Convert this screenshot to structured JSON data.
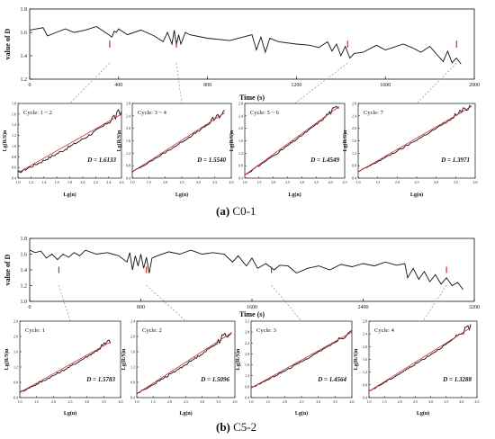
{
  "panels": [
    {
      "id": "a",
      "caption_letter": "(a)",
      "caption_text": "C0-1",
      "main": {
        "ylabel": "value of D",
        "xlabel": "Time (s)",
        "xlim": [
          0,
          2000
        ],
        "ylim": [
          1.2,
          1.8
        ],
        "xticks": [
          "0",
          "400",
          "800",
          "1200",
          "1600",
          "2000"
        ],
        "yticks": [
          "1.2",
          "1.4",
          "1.6",
          "1.8"
        ],
        "x": [
          0,
          60,
          80,
          120,
          160,
          200,
          250,
          300,
          340,
          370,
          380,
          390,
          400,
          440,
          500,
          560,
          600,
          620,
          640,
          650,
          660,
          670,
          680,
          700,
          720,
          800,
          900,
          960,
          1000,
          1020,
          1040,
          1060,
          1080,
          1120,
          1200,
          1260,
          1300,
          1340,
          1360,
          1380,
          1400,
          1420,
          1440,
          1460,
          1500,
          1560,
          1600,
          1680,
          1720,
          1760,
          1800,
          1860,
          1880,
          1900,
          1920,
          1940
        ],
        "y": [
          1.62,
          1.64,
          1.57,
          1.6,
          1.63,
          1.6,
          1.62,
          1.65,
          1.6,
          1.56,
          1.61,
          1.6,
          1.63,
          1.58,
          1.62,
          1.57,
          1.52,
          1.6,
          1.5,
          1.62,
          1.49,
          1.58,
          1.5,
          1.6,
          1.58,
          1.55,
          1.53,
          1.56,
          1.58,
          1.45,
          1.56,
          1.43,
          1.55,
          1.52,
          1.5,
          1.49,
          1.47,
          1.52,
          1.44,
          1.5,
          1.4,
          1.48,
          1.38,
          1.42,
          1.43,
          1.49,
          1.45,
          1.5,
          1.47,
          1.43,
          1.48,
          1.35,
          1.44,
          1.34,
          1.38,
          1.33
        ]
      },
      "subplots": [
        {
          "cycle": "Cycle: 1 ~ 2",
          "D": "D = 1.6133",
          "xlabel": "Lg(n)",
          "ylabel": "Lg(R/S)n",
          "xticks": [
            "1.0",
            "1.2",
            "1.4",
            "1.6",
            "1.8",
            "2.0",
            "2.2",
            "2.4",
            "2.6"
          ],
          "yticks": [
            "0.4",
            "0.6",
            "0.8",
            "1.0",
            "1.2",
            "1.4",
            "1.6",
            "1.8"
          ],
          "xlim": [
            1.0,
            2.6
          ],
          "ylim": [
            0.4,
            1.8
          ],
          "fit": [
            [
              1.0,
              0.5
            ],
            [
              2.6,
              1.6
            ]
          ]
        },
        {
          "cycle": "Cycle: 3 ~ 4",
          "D": "D = 1.5540",
          "xlabel": "Lg(n)",
          "ylabel": "Lg(R/S)n",
          "xticks": [
            "1.0",
            "1.5",
            "2.0",
            "2.5",
            "3.0",
            "3.5",
            "4.0"
          ],
          "yticks": [
            "0.4",
            "0.8",
            "1.2",
            "1.6",
            "2.0",
            "2.4",
            "2.8"
          ],
          "xlim": [
            1.0,
            4.0
          ],
          "ylim": [
            0.4,
            2.8
          ],
          "fit": [
            [
              1.0,
              0.6
            ],
            [
              3.8,
              2.5
            ]
          ]
        },
        {
          "cycle": "Cycle: 5 ~ 6",
          "D": "D = 1.4549",
          "xlabel": "Lg(n)",
          "ylabel": "Lg(R/S)n",
          "xticks": [
            "1.0",
            "1.5",
            "2.0",
            "2.5",
            "3.0",
            "3.5",
            "4.0",
            "4.5"
          ],
          "yticks": [
            "0.4",
            "0.8",
            "1.2",
            "1.6",
            "2.0",
            "2.4",
            "2.8"
          ],
          "xlim": [
            1.0,
            4.5
          ],
          "ylim": [
            0.4,
            2.8
          ],
          "fit": [
            [
              1.0,
              0.5
            ],
            [
              4.3,
              2.7
            ]
          ]
        },
        {
          "cycle": "Cycle: 7",
          "D": "D = 1.3971",
          "xlabel": "Lg(n)",
          "ylabel": "Lg(R/S)n",
          "xticks": [
            "1.0",
            "1.5",
            "2.0",
            "2.5",
            "3.0",
            "3.5",
            "4.0"
          ],
          "yticks": [
            "0.4",
            "0.8",
            "1.2",
            "1.6",
            "2.0",
            "2.4",
            "2.8"
          ],
          "xlim": [
            1.0,
            4.0
          ],
          "ylim": [
            0.4,
            2.8
          ],
          "fit": [
            [
              1.0,
              0.6
            ],
            [
              3.9,
              2.7
            ]
          ]
        }
      ]
    },
    {
      "id": "b",
      "caption_letter": "(b)",
      "caption_text": "C5-2",
      "main": {
        "ylabel": "value of D",
        "xlabel": "Time (s)",
        "xlim": [
          0,
          3200
        ],
        "ylim": [
          1.0,
          1.8
        ],
        "xticks": [
          "0",
          "800",
          "1600",
          "2400",
          "3200"
        ],
        "yticks": [
          "1.0",
          "1.2",
          "1.4",
          "1.6",
          "1.8"
        ],
        "x": [
          0,
          40,
          80,
          120,
          160,
          200,
          240,
          280,
          320,
          360,
          400,
          480,
          560,
          640,
          700,
          720,
          740,
          760,
          780,
          800,
          820,
          840,
          860,
          880,
          920,
          1000,
          1080,
          1160,
          1240,
          1320,
          1400,
          1460,
          1500,
          1560,
          1600,
          1640,
          1700,
          1760,
          1800,
          1860,
          1920,
          2000,
          2080,
          2160,
          2240,
          2320,
          2400,
          2480,
          2560,
          2640,
          2700,
          2720,
          2760,
          2800,
          2840,
          2880,
          2920,
          2960,
          3000,
          3040,
          3080,
          3120
        ],
        "y": [
          1.65,
          1.62,
          1.64,
          1.55,
          1.6,
          1.53,
          1.6,
          1.56,
          1.62,
          1.58,
          1.65,
          1.6,
          1.62,
          1.58,
          1.5,
          1.62,
          1.4,
          1.58,
          1.45,
          1.6,
          1.42,
          1.56,
          1.36,
          1.55,
          1.58,
          1.63,
          1.6,
          1.65,
          1.6,
          1.62,
          1.6,
          1.5,
          1.58,
          1.45,
          1.55,
          1.42,
          1.48,
          1.4,
          1.46,
          1.45,
          1.36,
          1.42,
          1.45,
          1.4,
          1.47,
          1.44,
          1.48,
          1.45,
          1.5,
          1.46,
          1.48,
          1.3,
          1.42,
          1.28,
          1.38,
          1.25,
          1.34,
          1.22,
          1.3,
          1.2,
          1.24,
          1.15
        ]
      },
      "subplots": [
        {
          "cycle": "Cycle: 1",
          "D": "D = 1.5783",
          "xlabel": "Lg(n)",
          "ylabel": "Lg(R/S)n",
          "xticks": [
            "1.0",
            "1.5",
            "2.0",
            "2.5",
            "3.0",
            "3.5",
            "4.0"
          ],
          "yticks": [
            "0.4",
            "0.8",
            "1.2",
            "1.6",
            "2.0",
            "2.4"
          ],
          "xlim": [
            1.0,
            4.0
          ],
          "ylim": [
            0.4,
            2.6
          ],
          "fit": [
            [
              1.0,
              0.55
            ],
            [
              3.7,
              2.0
            ]
          ]
        },
        {
          "cycle": "Cycle: 2",
          "D": "D = 1.5096",
          "xlabel": "Lg(n)",
          "ylabel": "Lg(R/S)n",
          "xticks": [
            "1.0",
            "1.5",
            "2.0",
            "2.5",
            "3.0",
            "3.5",
            "4.0"
          ],
          "yticks": [
            "0.4",
            "0.8",
            "1.2",
            "1.6",
            "2.0",
            "2.4"
          ],
          "xlim": [
            1.0,
            4.0
          ],
          "ylim": [
            0.4,
            2.4
          ],
          "fit": [
            [
              1.0,
              0.5
            ],
            [
              3.9,
              2.1
            ]
          ]
        },
        {
          "cycle": "Cycle: 3",
          "D": "D = 1.4564",
          "xlabel": "Lg(n)",
          "ylabel": "Lg(R/S)n",
          "xticks": [
            "1.0",
            "1.5",
            "2.0",
            "2.5",
            "3.0",
            "3.5",
            "4.0"
          ],
          "yticks": [
            "0.4",
            "0.8",
            "1.2",
            "1.6",
            "2.0",
            "2.4",
            "2.8",
            "3.2"
          ],
          "xlim": [
            1.0,
            4.0
          ],
          "ylim": [
            0.4,
            3.2
          ],
          "fit": [
            [
              1.0,
              0.75
            ],
            [
              4.0,
              2.8
            ]
          ]
        },
        {
          "cycle": "Cycle: 4",
          "D": "D = 1.3288",
          "xlabel": "Lg(n)",
          "ylabel": "Lg(R/S)n",
          "xticks": [
            "1.0",
            "1.5",
            "2.0",
            "2.5",
            "3.0",
            "3.5",
            "4.0",
            "4.5"
          ],
          "yticks": [
            "0.4",
            "0.8",
            "1.2",
            "1.6",
            "2.0",
            "2.4",
            "2.8"
          ],
          "xlim": [
            1.0,
            4.5
          ],
          "ylim": [
            0.4,
            2.8
          ],
          "fit": [
            [
              1.0,
              0.6
            ],
            [
              4.3,
              2.6
            ]
          ]
        }
      ]
    }
  ],
  "chart_data": [
    {
      "type": "line",
      "title": "",
      "xlabel": "Time (s)",
      "ylabel": "value of D",
      "xlim": [
        0,
        2000
      ],
      "ylim": [
        1.2,
        1.8
      ],
      "grid": false
    },
    {
      "type": "line",
      "title": "",
      "xlabel": "Time (s)",
      "ylabel": "value of D",
      "xlim": [
        0,
        3200
      ],
      "ylim": [
        1.0,
        1.8
      ],
      "grid": false
    }
  ],
  "colors": {
    "line": "#111111",
    "fit": "#d62728",
    "dashed": "#5b9bd5",
    "dvalue": "#e8202a"
  }
}
